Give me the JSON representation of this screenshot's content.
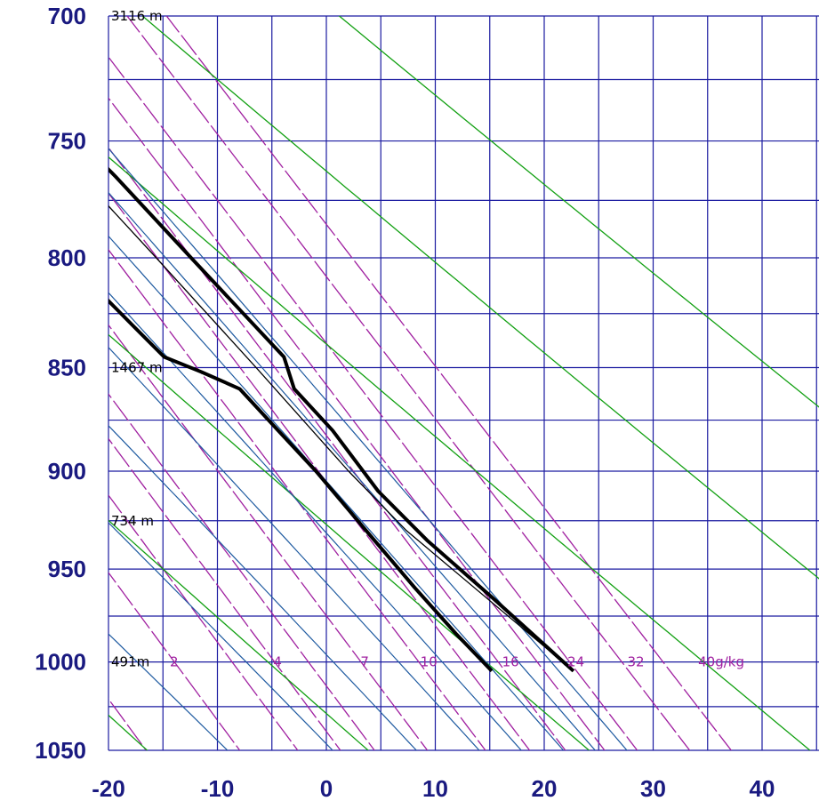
{
  "chart_data": {
    "type": "line",
    "title": "",
    "xlabel": "",
    "ylabel": "",
    "x_range": [
      -20,
      45
    ],
    "y_range": [
      700,
      1050
    ],
    "y_log": true,
    "grid": true,
    "skew_per_decade_x": 110,
    "colors": {
      "grid": "#1a1aa0",
      "mixing_ratio": "#a020a0",
      "dry_adiabat": "#12a012",
      "moist_adiabat": "#1e5aa0",
      "profile": "#000000"
    },
    "y_ticks": [
      "700",
      "750",
      "800",
      "850",
      "900",
      "950",
      "1000",
      "1050"
    ],
    "y_tick_values": [
      700,
      750,
      800,
      850,
      900,
      950,
      1000,
      1050
    ],
    "x_ticks": [
      "-20",
      "-10",
      "0",
      "10",
      "20",
      "30",
      "40"
    ],
    "x_tick_values": [
      -20,
      -10,
      0,
      10,
      20,
      30,
      40
    ],
    "height_labels": [
      {
        "p": 700,
        "text": "3116 m"
      },
      {
        "p": 850,
        "text": "1467 m"
      },
      {
        "p": 925,
        "text": "734 m"
      },
      {
        "p": 1000,
        "text": "491m"
      }
    ],
    "mixing_ratio_labels": [
      {
        "t": -9,
        "text": "2"
      },
      {
        "t": 0.5,
        "text": "4"
      },
      {
        "t": 8.5,
        "text": "7"
      },
      {
        "t": 14,
        "text": "10"
      },
      {
        "t": 21.5,
        "text": "16"
      },
      {
        "t": 27.5,
        "text": "24"
      },
      {
        "t": 33,
        "text": "32"
      },
      {
        "t": 39.5,
        "text": "40g/kg"
      }
    ],
    "mixing_ratio_values": [
      1,
      2,
      3,
      4,
      5,
      7,
      10,
      13,
      16,
      20,
      24,
      32,
      40
    ],
    "dry_adiabats_theta": [
      -20,
      0,
      20,
      40,
      60,
      80
    ],
    "moist_adiabats_theta": [
      -12,
      -2,
      6,
      12,
      16,
      20,
      23,
      26
    ],
    "series": [
      {
        "role": "dewpoint",
        "points": [
          [
            -2.5,
            700
          ],
          [
            0.5,
            730
          ],
          [
            3.5,
            765
          ],
          [
            6,
            800
          ],
          [
            8,
            830
          ],
          [
            9,
            845
          ],
          [
            11.5,
            852
          ],
          [
            14,
            860
          ],
          [
            15,
            880
          ],
          [
            16,
            900
          ],
          [
            17,
            930
          ],
          [
            18,
            960
          ],
          [
            19,
            985
          ],
          [
            20,
            1005
          ]
        ]
      },
      {
        "role": "temperature",
        "points": [
          [
            10.5,
            700
          ],
          [
            13,
            730
          ],
          [
            15.5,
            765
          ],
          [
            17.5,
            800
          ],
          [
            20,
            845
          ],
          [
            19,
            860
          ],
          [
            20,
            880
          ],
          [
            20.5,
            910
          ],
          [
            22,
            935
          ],
          [
            24.5,
            965
          ],
          [
            27.5,
            1005
          ]
        ]
      },
      {
        "role": "parcel",
        "points": [
          [
            8.5,
            700
          ],
          [
            11.5,
            750
          ],
          [
            14.3,
            800
          ],
          [
            16.8,
            850
          ],
          [
            19,
            900
          ],
          [
            20.7,
            930
          ],
          [
            27.5,
            1005
          ]
        ]
      }
    ]
  }
}
